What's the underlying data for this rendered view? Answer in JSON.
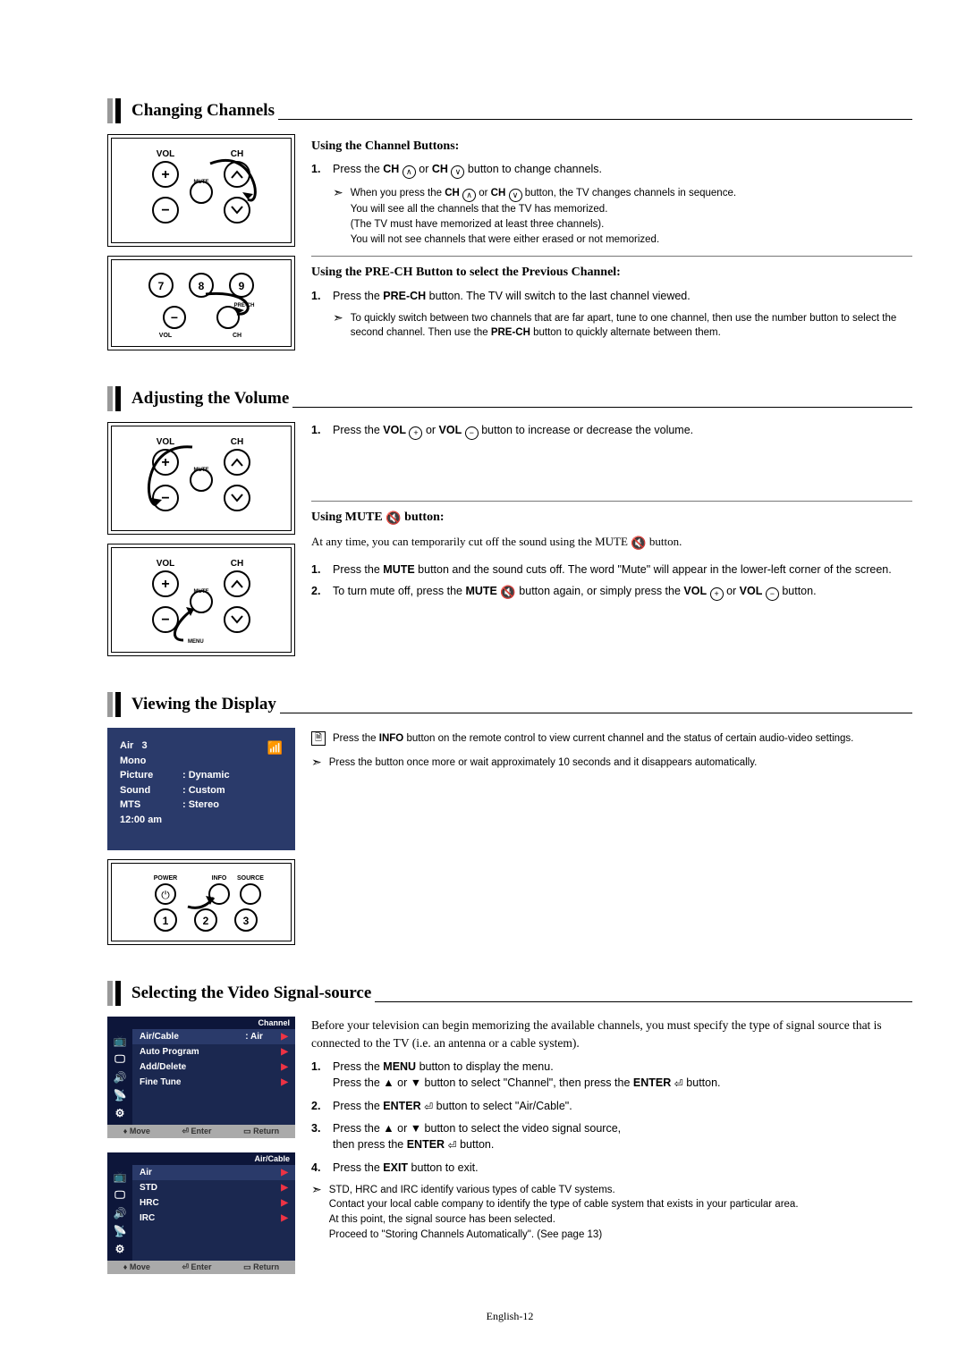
{
  "page_number": "English-12",
  "sections": {
    "changing_channels": {
      "title": "Changing Channels",
      "sub1_heading": "Using the Channel Buttons:",
      "step1": "Press the CH ⊕ or CH ⊖ button to change channels.",
      "note1_l1": "When you press the CH ⊕ or CH ⊖ button, the TV changes channels in sequence.",
      "note1_l2": "You will see all the channels that the TV has memorized.",
      "note1_l3": "(The TV must have memorized at least three channels).",
      "note1_l4": "You will not see channels that were either erased or not memorized.",
      "sub2_heading": "Using the PRE-CH Button to select the Previous Channel:",
      "step2": "Press the PRE-CH button. The TV will switch to the last channel viewed.",
      "note2": "To quickly switch between two channels that are far apart, tune to one channel, then use the number button to select the second channel. Then use the PRE-CH button to quickly alternate between them.",
      "remote_labels": {
        "vol": "VOL",
        "ch": "CH",
        "mute": "MUTE",
        "prech": "PRE-CH"
      }
    },
    "adjusting_volume": {
      "title": "Adjusting the Volume",
      "step1": "Press the VOL ⊕ or VOL ⊖ button to increase or decrease the volume.",
      "sub2_heading": "Using MUTE 🔇 button:",
      "intro2": "At any time, you can temporarily cut off the sound using the MUTE 🔇 button.",
      "step2_1": "Press the MUTE button and the sound cuts off. The word \"Mute\" will appear in the lower-left corner of the screen.",
      "step2_2": "To turn mute off, press the MUTE 🔇 button again, or simply press the VOL ⊕ or VOL ⊖ button."
    },
    "viewing_display": {
      "title": "Viewing the Display",
      "note_info": "Press the INFO button on the remote control to view current channel and the status of certain audio-video settings.",
      "note_auto": "Press the button once more or wait approximately 10 seconds and it disappears automatically.",
      "info_panel": {
        "line1_a": "Air",
        "line1_b": "3",
        "line2": "Mono",
        "picture_label": "Picture",
        "picture_val": ": Dynamic",
        "sound_label": "Sound",
        "sound_val": ": Custom",
        "mts_label": "MTS",
        "mts_val": ": Stereo",
        "time": "12:00    am"
      },
      "remote2_labels": {
        "power": "POWER",
        "info": "INFO",
        "source": "SOURCE"
      }
    },
    "selecting_source": {
      "title": "Selecting the Video Signal-source",
      "intro": "Before your television can begin memorizing the available channels, you must specify the type of signal source that is connected to the TV (i.e. an antenna or a cable system).",
      "step1_a": "Press the MENU button to display the menu.",
      "step1_b": "Press the ▲ or ▼ button to select \"Channel\", then press the ENTER ⏎ button.",
      "step2": "Press the ENTER ⏎ button to select \"Air/Cable\".",
      "step3_a": "Press the ▲ or ▼ button to select the video signal source,",
      "step3_b": "then press the ENTER ⏎ button.",
      "step4": "Press the EXIT button to exit.",
      "note_l1": "STD, HRC and IRC identify various types of cable TV systems.",
      "note_l2": "Contact your local cable company to identify the type of cable system that exists in your particular area.",
      "note_l3": "At this point, the signal source has been selected.",
      "note_l4": "Proceed to \"Storing Channels Automatically\". (See page 13)",
      "osd1": {
        "title": "Channel",
        "rows": [
          {
            "label": "Air/Cable",
            "val": ": Air",
            "sel": true
          },
          {
            "label": "Auto Program",
            "val": "",
            "sel": false
          },
          {
            "label": "Add/Delete",
            "val": "",
            "sel": false
          },
          {
            "label": "Fine Tune",
            "val": "",
            "sel": false
          }
        ],
        "foot_move": "Move",
        "foot_enter": "Enter",
        "foot_return": "Return"
      },
      "osd2": {
        "title": "Air/Cable",
        "rows": [
          {
            "label": "Air",
            "sel": true
          },
          {
            "label": "STD",
            "sel": false
          },
          {
            "label": "HRC",
            "sel": false
          },
          {
            "label": "IRC",
            "sel": false
          }
        ],
        "foot_move": "Move",
        "foot_enter": "Enter",
        "foot_return": "Return"
      }
    }
  }
}
